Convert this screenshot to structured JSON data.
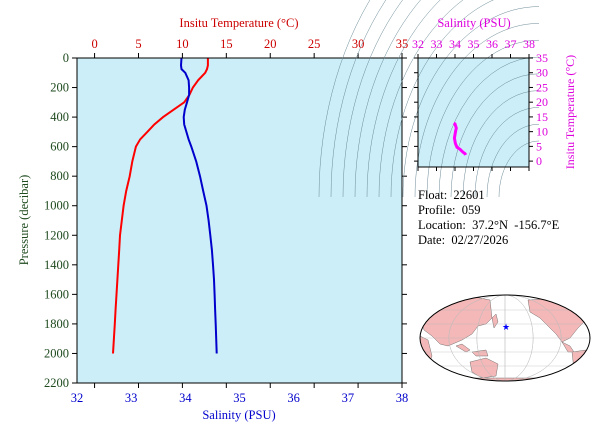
{
  "chart_data": [
    {
      "type": "line",
      "title": "",
      "top_axis_label": "Insitu Temperature (°C)",
      "bottom_axis_label": "Salinity (PSU)",
      "ylabel": "Pressure (decibar)",
      "temp_range": [
        -2,
        35
      ],
      "salinity_range": [
        32,
        38
      ],
      "pressure_range": [
        0,
        2200
      ],
      "y_inverted": true,
      "temp_ticks": [
        0,
        5,
        10,
        15,
        20,
        25,
        30,
        35
      ],
      "salinity_ticks": [
        32,
        33,
        34,
        35,
        36,
        37,
        38
      ],
      "pressure_ticks": [
        0,
        200,
        400,
        600,
        800,
        1000,
        1200,
        1400,
        1600,
        1800,
        2000,
        2200
      ],
      "series": [
        {
          "color": "#ff0000",
          "x_axis": "temperature",
          "points": [
            [
              12.9,
              0
            ],
            [
              12.9,
              50
            ],
            [
              12.8,
              75
            ],
            [
              12.6,
              100
            ],
            [
              11.8,
              150
            ],
            [
              11.2,
              200
            ],
            [
              10.8,
              250
            ],
            [
              10.2,
              300
            ],
            [
              9.0,
              350
            ],
            [
              7.8,
              400
            ],
            [
              6.8,
              450
            ],
            [
              6.0,
              500
            ],
            [
              5.2,
              550
            ],
            [
              4.7,
              600
            ],
            [
              4.3,
              700
            ],
            [
              4.0,
              800
            ],
            [
              3.6,
              900
            ],
            [
              3.3,
              1000
            ],
            [
              3.1,
              1100
            ],
            [
              2.9,
              1200
            ],
            [
              2.8,
              1300
            ],
            [
              2.7,
              1400
            ],
            [
              2.6,
              1500
            ],
            [
              2.5,
              1600
            ],
            [
              2.4,
              1700
            ],
            [
              2.3,
              1800
            ],
            [
              2.2,
              1900
            ],
            [
              2.1,
              2000
            ]
          ]
        },
        {
          "color": "#0000cc",
          "x_axis": "salinity",
          "points": [
            [
              33.93,
              0
            ],
            [
              33.92,
              50
            ],
            [
              33.93,
              75
            ],
            [
              34.0,
              100
            ],
            [
              34.06,
              150
            ],
            [
              34.07,
              200
            ],
            [
              34.07,
              250
            ],
            [
              34.03,
              300
            ],
            [
              33.99,
              350
            ],
            [
              33.97,
              400
            ],
            [
              33.98,
              450
            ],
            [
              34.02,
              500
            ],
            [
              34.06,
              550
            ],
            [
              34.11,
              600
            ],
            [
              34.2,
              700
            ],
            [
              34.27,
              800
            ],
            [
              34.33,
              900
            ],
            [
              34.39,
              1000
            ],
            [
              34.43,
              1100
            ],
            [
              34.46,
              1200
            ],
            [
              34.49,
              1300
            ],
            [
              34.51,
              1400
            ],
            [
              34.53,
              1500
            ],
            [
              34.54,
              1600
            ],
            [
              34.55,
              1700
            ],
            [
              34.56,
              1800
            ],
            [
              34.57,
              1900
            ],
            [
              34.58,
              2000
            ]
          ]
        }
      ]
    },
    {
      "type": "scatter",
      "title": "",
      "xlabel": "Salinity (PSU)",
      "ylabel": "Insitu Temperature (°C)",
      "xlim": [
        32,
        38
      ],
      "ylim": [
        -2,
        35
      ],
      "x_ticks": [
        32,
        33,
        34,
        35,
        36,
        37,
        38
      ],
      "y_ticks": [
        0,
        5,
        10,
        15,
        20,
        25,
        30,
        35
      ],
      "series": [
        {
          "color": "#ff00ff",
          "points": [
            [
              33.93,
              12.9
            ],
            [
              34.0,
              12.6
            ],
            [
              34.07,
              11.2
            ],
            [
              34.03,
              10.2
            ],
            [
              33.97,
              7.8
            ],
            [
              34.02,
              6.0
            ],
            [
              34.11,
              4.7
            ],
            [
              34.27,
              4.0
            ],
            [
              34.39,
              3.3
            ],
            [
              34.46,
              2.9
            ],
            [
              34.51,
              2.7
            ],
            [
              34.54,
              2.5
            ],
            [
              34.56,
              2.3
            ],
            [
              34.58,
              2.1
            ]
          ]
        }
      ]
    }
  ],
  "info": {
    "float": "Float:  22601",
    "profile": "Profile:  059",
    "location": "Location:  37.2°N  -156.7°E",
    "date": "Date:  02/27/2026"
  },
  "map": {
    "marker": "★",
    "marker_color": "#0000ff",
    "land_color": "#f4b8b8",
    "ocean_color": "#ffffff"
  },
  "colors": {
    "plot_bg": "#cceef8",
    "temp": "#ff0000",
    "salinity": "#0000cc",
    "ts": "#ff00ff",
    "pressure_text": "#1e4a1e"
  }
}
